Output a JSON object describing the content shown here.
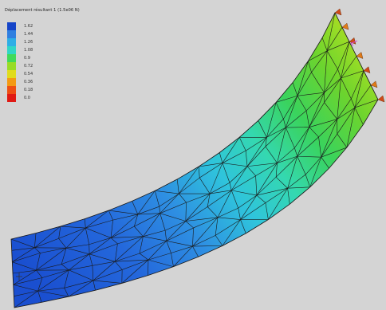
{
  "header": {
    "title": "Déplacement résultant 1 (1.5e06 N)"
  },
  "legend": {
    "items": [
      {
        "label": "1.62",
        "color": "#1444c8"
      },
      {
        "label": "1.44",
        "color": "#2f7fe0"
      },
      {
        "label": "1.26",
        "color": "#2eaee6"
      },
      {
        "label": "1.08",
        "color": "#30d6c6"
      },
      {
        "label": "0.9",
        "color": "#40da5a"
      },
      {
        "label": "0.72",
        "color": "#98dc26"
      },
      {
        "label": "0.54",
        "color": "#e0dc1c"
      },
      {
        "label": "0.36",
        "color": "#f39a14"
      },
      {
        "label": "0.18",
        "color": "#ee4f14"
      },
      {
        "label": "0.0",
        "color": "#e01a14"
      }
    ]
  },
  "colors": {
    "background": "#d4d4d4",
    "mesh_lines": "#1a1a1a",
    "load_marker": "#d040d0"
  },
  "icons": {
    "constraint": "fixed-support-icon",
    "load": "load-arrow-icon",
    "origin": "origin-axis-icon"
  }
}
